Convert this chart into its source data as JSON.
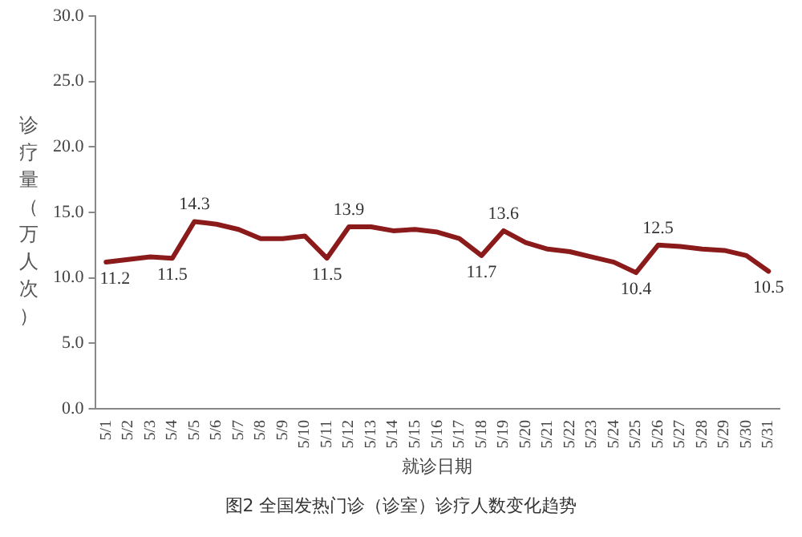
{
  "chart_data": {
    "type": "line",
    "title": "图2 全国发热门诊（诊室）诊疗人数变化趋势",
    "xlabel": "就诊日期",
    "ylabel": "诊疗量（万人次）",
    "categories": [
      "5/1",
      "5/2",
      "5/3",
      "5/4",
      "5/5",
      "5/6",
      "5/7",
      "5/8",
      "5/9",
      "5/10",
      "5/11",
      "5/12",
      "5/13",
      "5/14",
      "5/15",
      "5/16",
      "5/17",
      "5/18",
      "5/19",
      "5/20",
      "5/21",
      "5/22",
      "5/23",
      "5/24",
      "5/25",
      "5/26",
      "5/27",
      "5/28",
      "5/29",
      "5/30",
      "5/31"
    ],
    "series": [
      {
        "color": "#8b1a1a",
        "values": [
          11.2,
          11.4,
          11.6,
          11.5,
          14.3,
          14.1,
          13.7,
          13.0,
          13.0,
          13.2,
          11.5,
          13.9,
          13.9,
          13.6,
          13.7,
          13.5,
          13.0,
          11.7,
          13.6,
          12.7,
          12.2,
          12.0,
          11.6,
          11.2,
          10.4,
          12.5,
          12.4,
          12.2,
          12.1,
          11.7,
          10.5
        ],
        "value_labels": [
          "11.2",
          null,
          null,
          "11.5",
          "14.3",
          null,
          null,
          null,
          null,
          null,
          "11.5",
          "13.9",
          null,
          null,
          null,
          null,
          null,
          "11.7",
          "13.6",
          null,
          null,
          null,
          null,
          null,
          "10.4",
          "12.5",
          null,
          null,
          null,
          null,
          "10.5"
        ]
      }
    ],
    "ylim": [
      0,
      30
    ],
    "yticks": [
      {
        "value": 0,
        "label": "0.0"
      },
      {
        "value": 5,
        "label": "5.0"
      },
      {
        "value": 10,
        "label": "10.0"
      },
      {
        "value": 15,
        "label": "15.0"
      },
      {
        "value": 20,
        "label": "20.0"
      },
      {
        "value": 25,
        "label": "25.0"
      },
      {
        "value": 30,
        "label": "30.0"
      }
    ],
    "grid": false,
    "legend": false,
    "marker": "none",
    "line_style": "solid"
  }
}
